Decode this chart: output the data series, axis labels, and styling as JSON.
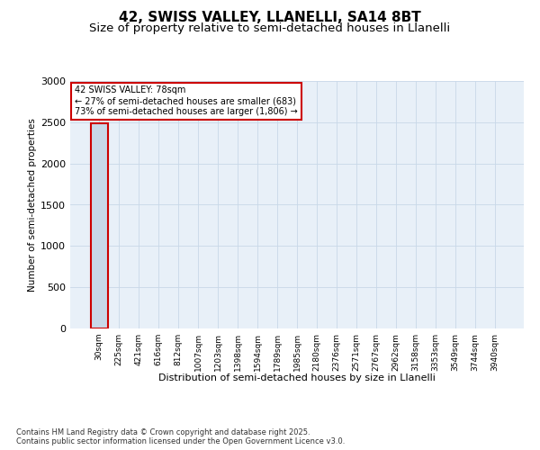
{
  "title1": "42, SWISS VALLEY, LLANELLI, SA14 8BT",
  "title2": "Size of property relative to semi-detached houses in Llanelli",
  "xlabel": "Distribution of semi-detached houses by size in Llanelli",
  "ylabel": "Number of semi-detached properties",
  "categories": [
    "30sqm",
    "225sqm",
    "421sqm",
    "616sqm",
    "812sqm",
    "1007sqm",
    "1203sqm",
    "1398sqm",
    "1594sqm",
    "1789sqm",
    "1985sqm",
    "2180sqm",
    "2376sqm",
    "2571sqm",
    "2767sqm",
    "2962sqm",
    "3158sqm",
    "3353sqm",
    "3549sqm",
    "3744sqm",
    "3940sqm"
  ],
  "values": [
    2489,
    0,
    0,
    0,
    0,
    0,
    0,
    0,
    0,
    0,
    0,
    0,
    0,
    0,
    0,
    0,
    0,
    0,
    0,
    0,
    0
  ],
  "bar_color": "#c8d8e8",
  "bar_edge_color": "#5588aa",
  "highlight_bar_index": 0,
  "highlight_bar_edge_color": "#cc0000",
  "ylim": [
    0,
    3000
  ],
  "yticks": [
    0,
    500,
    1000,
    1500,
    2000,
    2500,
    3000
  ],
  "annotation_text": "42 SWISS VALLEY: 78sqm\n← 27% of semi-detached houses are smaller (683)\n73% of semi-detached houses are larger (1,806) →",
  "annotation_box_color": "#ffffff",
  "annotation_box_edge_color": "#cc0000",
  "footer": "Contains HM Land Registry data © Crown copyright and database right 2025.\nContains public sector information licensed under the Open Government Licence v3.0.",
  "grid_color": "#c8d8e8",
  "plot_background": "#e8f0f8",
  "title_fontsize": 11,
  "subtitle_fontsize": 9.5
}
